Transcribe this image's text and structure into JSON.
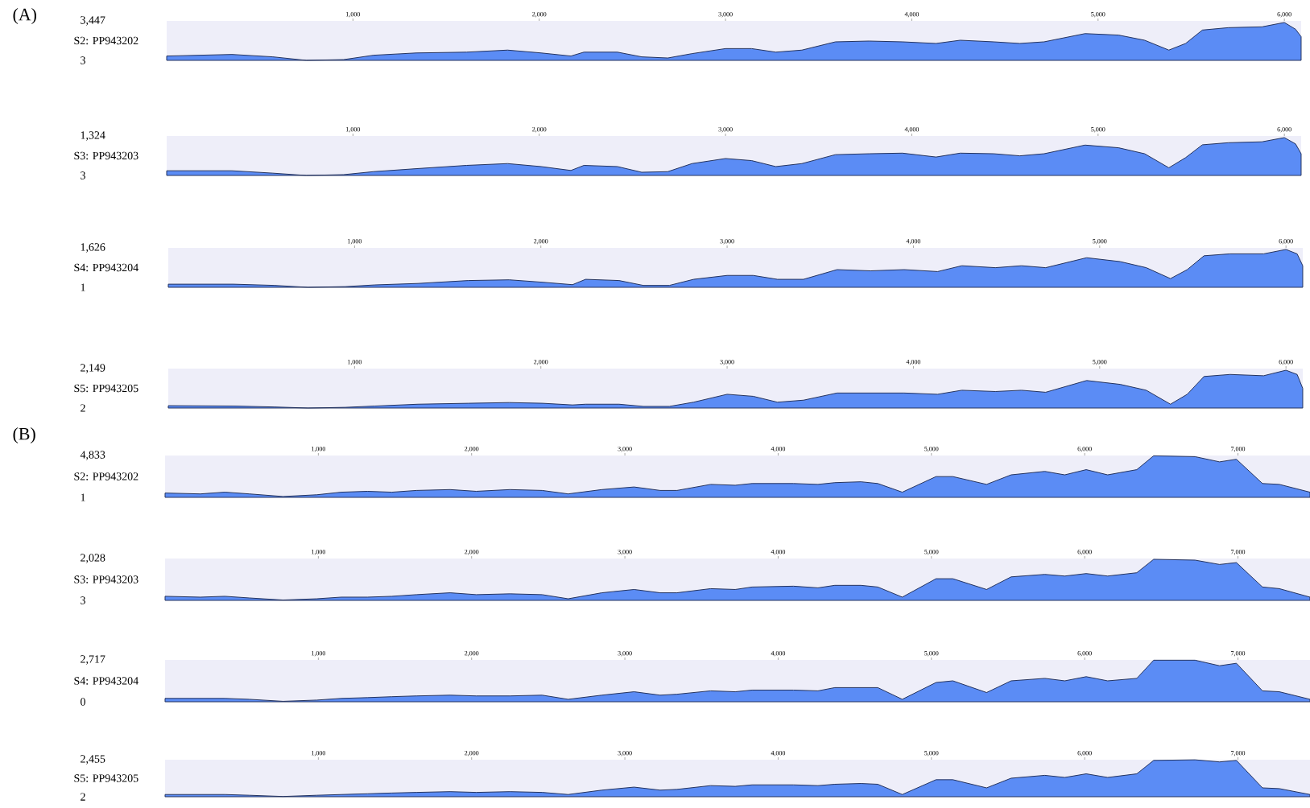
{
  "chart_data": [
    {
      "type": "area",
      "title": "(A)",
      "ylabel": "S2: PP943202",
      "color": "#5b8cf5",
      "xlim": [
        0,
        6090
      ],
      "ylim": [
        3,
        3447
      ],
      "xticks": [
        {
          "value": 1000,
          "label": "1,000"
        },
        {
          "value": 2000,
          "label": "2,000"
        },
        {
          "value": 3000,
          "label": "3,000"
        },
        {
          "value": 4000,
          "label": "4,000"
        },
        {
          "value": 5000,
          "label": "5,000"
        },
        {
          "value": 6000,
          "label": "6,000"
        }
      ],
      "yticks": [
        {
          "value": 3447,
          "label": "3,447"
        },
        3
      ],
      "x": [
        0,
        350,
        570,
        750,
        950,
        1110,
        1340,
        1610,
        1830,
        2010,
        2170,
        2240,
        2420,
        2550,
        2690,
        2820,
        3000,
        3140,
        3270,
        3410,
        3590,
        3770,
        3950,
        4130,
        4260,
        4440,
        4580,
        4710,
        4930,
        5110,
        5250,
        5380,
        5470,
        5560,
        5700,
        5880,
        6000,
        6060,
        6090
      ],
      "values": [
        380,
        520,
        310,
        3,
        70,
        450,
        650,
        720,
        900,
        650,
        380,
        720,
        720,
        310,
        210,
        590,
        1030,
        1030,
        720,
        900,
        1620,
        1690,
        1620,
        1480,
        1760,
        1620,
        1480,
        1620,
        2340,
        2210,
        1760,
        900,
        1480,
        2650,
        2860,
        2930,
        3310,
        2720,
        2070
      ]
    },
    {
      "type": "area",
      "ylabel": "S3: PP943203",
      "color": "#5b8cf5",
      "xlim": [
        0,
        6090
      ],
      "ylim": [
        3,
        1324
      ],
      "xticks": [
        {
          "value": 1000,
          "label": "1,000"
        },
        {
          "value": 2000,
          "label": "2,000"
        },
        {
          "value": 3000,
          "label": "3,000"
        },
        {
          "value": 4000,
          "label": "4,000"
        },
        {
          "value": 5000,
          "label": "5,000"
        },
        {
          "value": 6000,
          "label": "6,000"
        }
      ],
      "yticks": [
        {
          "value": 1324,
          "label": "1,324"
        },
        3
      ],
      "x": [
        0,
        350,
        570,
        750,
        950,
        1110,
        1340,
        1610,
        1830,
        2010,
        2170,
        2240,
        2420,
        2550,
        2690,
        2820,
        3000,
        3140,
        3270,
        3410,
        3590,
        3770,
        3950,
        4130,
        4260,
        4440,
        4580,
        4710,
        4930,
        5110,
        5250,
        5380,
        5470,
        5560,
        5700,
        5880,
        6000,
        6060,
        6090
      ],
      "values": [
        160,
        160,
        80,
        3,
        30,
        130,
        230,
        340,
        400,
        300,
        170,
        340,
        300,
        110,
        130,
        400,
        570,
        500,
        300,
        400,
        700,
        730,
        750,
        620,
        750,
        730,
        660,
        730,
        1020,
        930,
        730,
        260,
        600,
        1030,
        1100,
        1130,
        1270,
        1060,
        730
      ]
    },
    {
      "type": "area",
      "ylabel": "S4: PP943204",
      "color": "#5b8cf5",
      "xlim": [
        0,
        6090
      ],
      "ylim": [
        1,
        1626
      ],
      "xticks": [
        {
          "value": 1000,
          "label": "1,000"
        },
        {
          "value": 2000,
          "label": "2,000"
        },
        {
          "value": 3000,
          "label": "3,000"
        },
        {
          "value": 4000,
          "label": "4,000"
        },
        {
          "value": 5000,
          "label": "5,000"
        },
        {
          "value": 6000,
          "label": "6,000"
        }
      ],
      "yticks": [
        {
          "value": 1626,
          "label": "1,626"
        },
        1
      ],
      "x": [
        0,
        350,
        570,
        750,
        950,
        1110,
        1340,
        1610,
        1830,
        2010,
        2170,
        2240,
        2420,
        2550,
        2690,
        2820,
        3000,
        3140,
        3270,
        3410,
        3590,
        3770,
        3950,
        4130,
        4260,
        4440,
        4580,
        4710,
        4930,
        5110,
        5250,
        5380,
        5470,
        5560,
        5700,
        5880,
        6000,
        6060,
        6090
      ],
      "values": [
        130,
        130,
        80,
        1,
        30,
        100,
        160,
        280,
        310,
        210,
        110,
        330,
        280,
        80,
        80,
        330,
        490,
        490,
        330,
        330,
        730,
        680,
        730,
        650,
        890,
        810,
        890,
        810,
        1220,
        1060,
        810,
        360,
        730,
        1300,
        1380,
        1380,
        1560,
        1380,
        890
      ]
    },
    {
      "type": "area",
      "ylabel": "S5: PP943205",
      "color": "#5b8cf5",
      "xlim": [
        0,
        6090
      ],
      "ylim": [
        2,
        2149
      ],
      "xticks": [
        {
          "value": 1000,
          "label": "1,000"
        },
        {
          "value": 2000,
          "label": "2,000"
        },
        {
          "value": 3000,
          "label": "3,000"
        },
        {
          "value": 4000,
          "label": "4,000"
        },
        {
          "value": 5000,
          "label": "5,000"
        },
        {
          "value": 6000,
          "label": "6,000"
        }
      ],
      "yticks": [
        {
          "value": 2149,
          "label": "2,149"
        },
        2
      ],
      "x": [
        0,
        350,
        570,
        750,
        950,
        1110,
        1340,
        1610,
        1830,
        2010,
        2170,
        2240,
        2420,
        2550,
        2690,
        2820,
        3000,
        3140,
        3270,
        3410,
        3590,
        3770,
        3950,
        4130,
        4260,
        4440,
        4580,
        4710,
        4930,
        5110,
        5250,
        5380,
        5470,
        5560,
        5700,
        5880,
        6000,
        6060,
        6090
      ],
      "values": [
        130,
        110,
        60,
        2,
        40,
        110,
        210,
        260,
        300,
        260,
        170,
        210,
        210,
        90,
        90,
        320,
        750,
        640,
        320,
        430,
        820,
        820,
        820,
        750,
        970,
        900,
        970,
        860,
        1500,
        1290,
        970,
        210,
        750,
        1720,
        1830,
        1760,
        2060,
        1830,
        1070
      ]
    },
    {
      "type": "area",
      "title": "(B)",
      "ylabel": "S2: PP943202",
      "color": "#5b8cf5",
      "xlim": [
        0,
        7470
      ],
      "ylim": [
        1,
        4833
      ],
      "xticks": [
        {
          "value": 1000,
          "label": "1,000"
        },
        {
          "value": 2000,
          "label": "2,000"
        },
        {
          "value": 3000,
          "label": "3,000"
        },
        {
          "value": 4000,
          "label": "4,000"
        },
        {
          "value": 5000,
          "label": "5,000"
        },
        {
          "value": 6000,
          "label": "6,000"
        },
        {
          "value": 7000,
          "label": "7,000"
        }
      ],
      "yticks": [
        {
          "value": 4833,
          "label": "4,833"
        },
        1
      ],
      "x": [
        0,
        230,
        390,
        550,
        770,
        990,
        1150,
        1320,
        1480,
        1640,
        1860,
        2030,
        2250,
        2460,
        2630,
        2850,
        3060,
        3230,
        3340,
        3560,
        3720,
        3830,
        4100,
        4260,
        4370,
        4540,
        4650,
        4810,
        5030,
        5140,
        5360,
        5520,
        5740,
        5870,
        6010,
        6150,
        6340,
        6450,
        6720,
        6880,
        6990,
        7160,
        7270,
        7470
      ],
      "values": [
        500,
        400,
        600,
        400,
        100,
        300,
        600,
        700,
        600,
        800,
        900,
        700,
        900,
        800,
        400,
        900,
        1200,
        800,
        800,
        1500,
        1400,
        1600,
        1600,
        1500,
        1700,
        1800,
        1600,
        600,
        2400,
        2400,
        1500,
        2600,
        3000,
        2600,
        3200,
        2600,
        3200,
        4800,
        4700,
        4100,
        4400,
        1600,
        1500,
        600
      ]
    },
    {
      "type": "area",
      "ylabel": "S3: PP943203",
      "color": "#5b8cf5",
      "xlim": [
        0,
        7470
      ],
      "ylim": [
        3,
        2028
      ],
      "xticks": [
        {
          "value": 1000,
          "label": "1,000"
        },
        {
          "value": 2000,
          "label": "2,000"
        },
        {
          "value": 3000,
          "label": "3,000"
        },
        {
          "value": 4000,
          "label": "4,000"
        },
        {
          "value": 5000,
          "label": "5,000"
        },
        {
          "value": 6000,
          "label": "6,000"
        },
        {
          "value": 7000,
          "label": "7,000"
        }
      ],
      "yticks": [
        {
          "value": 2028,
          "label": "2,028"
        },
        3
      ],
      "x": [
        0,
        230,
        390,
        550,
        770,
        990,
        1150,
        1320,
        1480,
        1640,
        1860,
        2030,
        2250,
        2460,
        2630,
        2850,
        3060,
        3230,
        3340,
        3560,
        3720,
        3830,
        4100,
        4260,
        4370,
        4540,
        4650,
        4810,
        5030,
        5140,
        5360,
        5520,
        5740,
        5870,
        6010,
        6150,
        6340,
        6450,
        6720,
        6880,
        6990,
        7160,
        7270,
        7470
      ],
      "values": [
        200,
        160,
        200,
        120,
        20,
        80,
        160,
        160,
        200,
        280,
        370,
        280,
        320,
        280,
        80,
        370,
        530,
        370,
        370,
        570,
        530,
        650,
        690,
        610,
        730,
        730,
        650,
        160,
        1050,
        1050,
        530,
        1140,
        1260,
        1180,
        1300,
        1180,
        1340,
        1990,
        1950,
        1740,
        1830,
        650,
        570,
        160
      ]
    },
    {
      "type": "area",
      "ylabel": "S4: PP943204",
      "color": "#5b8cf5",
      "xlim": [
        0,
        7470
      ],
      "ylim": [
        0,
        2717
      ],
      "xticks": [
        {
          "value": 1000,
          "label": "1,000"
        },
        {
          "value": 2000,
          "label": "2,000"
        },
        {
          "value": 3000,
          "label": "3,000"
        },
        {
          "value": 4000,
          "label": "4,000"
        },
        {
          "value": 5000,
          "label": "5,000"
        },
        {
          "value": 6000,
          "label": "6,000"
        },
        {
          "value": 7000,
          "label": "7,000"
        }
      ],
      "yticks": [
        {
          "value": 2717,
          "label": "2,717"
        },
        0
      ],
      "x": [
        0,
        230,
        390,
        550,
        770,
        990,
        1150,
        1320,
        1480,
        1640,
        1860,
        2030,
        2250,
        2460,
        2630,
        2850,
        3060,
        3230,
        3340,
        3560,
        3720,
        3830,
        4100,
        4260,
        4370,
        4540,
        4650,
        4810,
        5030,
        5140,
        5360,
        5520,
        5740,
        5870,
        6010,
        6150,
        6340,
        6450,
        6720,
        6880,
        6990,
        7160,
        7270,
        7470
      ],
      "values": [
        220,
        220,
        220,
        160,
        30,
        110,
        220,
        270,
        330,
        380,
        430,
        380,
        380,
        430,
        160,
        430,
        650,
        430,
        490,
        710,
        650,
        760,
        760,
        710,
        920,
        920,
        920,
        160,
        1250,
        1360,
        600,
        1360,
        1520,
        1360,
        1630,
        1360,
        1520,
        2700,
        2700,
        2340,
        2500,
        710,
        650,
        160
      ]
    },
    {
      "type": "area",
      "ylabel": "S5: PP943205",
      "color": "#5b8cf5",
      "xlim": [
        0,
        7470
      ],
      "ylim": [
        2,
        2455
      ],
      "xticks": [
        {
          "value": 1000,
          "label": "1,000"
        },
        {
          "value": 2000,
          "label": "2,000"
        },
        {
          "value": 3000,
          "label": "3,000"
        },
        {
          "value": 4000,
          "label": "4,000"
        },
        {
          "value": 5000,
          "label": "5,000"
        },
        {
          "value": 6000,
          "label": "6,000"
        },
        {
          "value": 7000,
          "label": "7,000"
        }
      ],
      "yticks": [
        {
          "value": 2455,
          "label": "2,455"
        },
        2
      ],
      "x": [
        0,
        230,
        390,
        550,
        770,
        990,
        1150,
        1320,
        1480,
        1640,
        1860,
        2030,
        2250,
        2460,
        2630,
        2850,
        3060,
        3230,
        3340,
        3560,
        3720,
        3830,
        4100,
        4260,
        4370,
        4540,
        4650,
        4810,
        5030,
        5140,
        5360,
        5520,
        5740,
        5870,
        6010,
        6150,
        6340,
        6450,
        6720,
        6880,
        6990,
        7160,
        7270,
        7470
      ],
      "values": [
        150,
        150,
        150,
        100,
        20,
        100,
        150,
        200,
        250,
        290,
        340,
        290,
        340,
        290,
        150,
        440,
        640,
        440,
        490,
        740,
        690,
        790,
        790,
        740,
        830,
        880,
        830,
        150,
        1130,
        1130,
        590,
        1230,
        1420,
        1280,
        1520,
        1280,
        1520,
        2410,
        2450,
        2310,
        2410,
        590,
        540,
        150
      ]
    }
  ]
}
